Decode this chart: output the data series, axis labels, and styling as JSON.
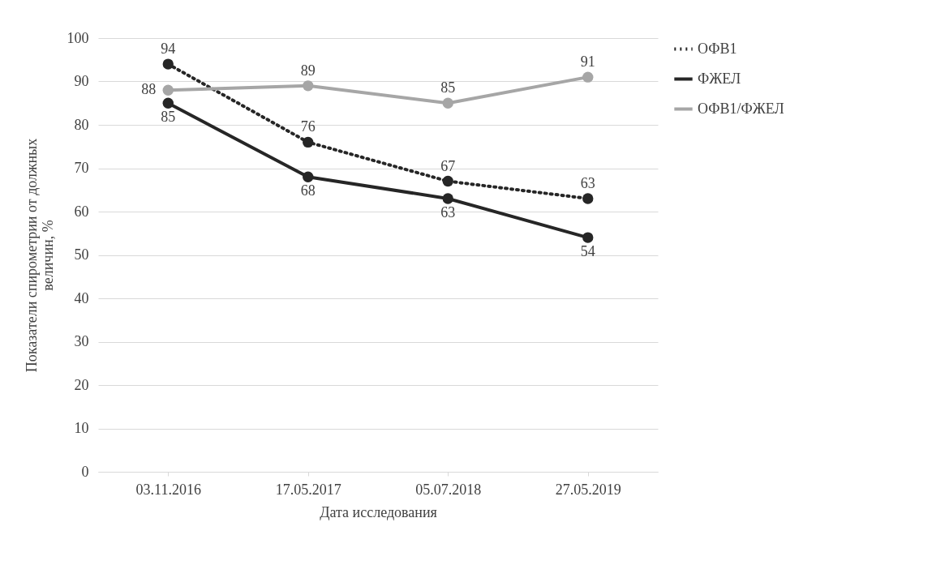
{
  "chart_data": {
    "type": "line",
    "xlabel": "Дата исследования",
    "ylabel": "Показатели спирометрии от должных величин, %",
    "categories": [
      "03.11.2016",
      "17.05.2017",
      "05.07.2018",
      "27.05.2019"
    ],
    "series": [
      {
        "name": "ОФВ1",
        "color": "#262626",
        "line_style": "dotted",
        "values": [
          94,
          76,
          67,
          63
        ]
      },
      {
        "name": "ФЖЕЛ",
        "color": "#262626",
        "line_style": "solid",
        "values": [
          85,
          68,
          63,
          54
        ]
      },
      {
        "name": "ОФВ1/ФЖЕЛ",
        "color": "#a6a6a6",
        "line_style": "solid",
        "values": [
          88,
          89,
          85,
          91
        ]
      }
    ],
    "ylim": [
      0,
      100
    ],
    "yticks": [
      0,
      10,
      20,
      30,
      40,
      50,
      60,
      70,
      80,
      90,
      100
    ],
    "grid": "y",
    "legend": "right",
    "marker": "circle",
    "data_labels": true
  }
}
